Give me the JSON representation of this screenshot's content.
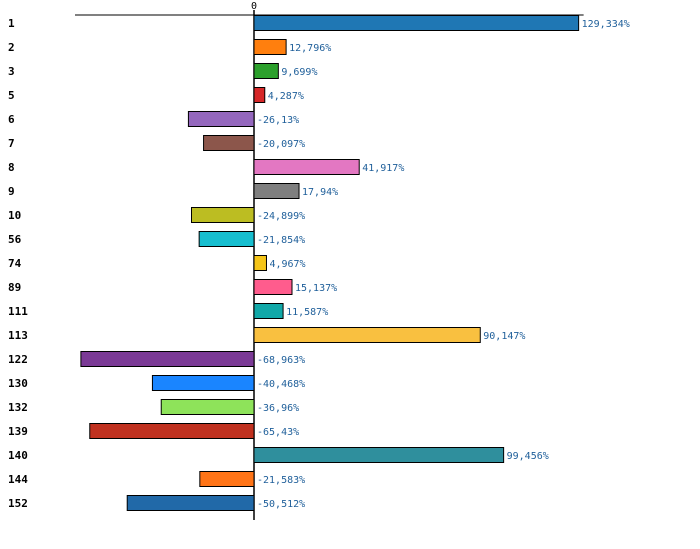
{
  "chart_data": {
    "type": "bar",
    "orientation": "horizontal",
    "title": "",
    "xlabel": "",
    "ylabel": "",
    "zero_tick_label": "0",
    "xlim": [
      -100,
      129.334
    ],
    "grid": false,
    "legend": "none",
    "categories": [
      "1",
      "2",
      "3",
      "5",
      "6",
      "7",
      "8",
      "9",
      "10",
      "56",
      "74",
      "89",
      "111",
      "113",
      "122",
      "130",
      "132",
      "139",
      "140",
      "144",
      "152"
    ],
    "values": [
      129.334,
      12.796,
      9.699,
      4.287,
      -26.13,
      -20.097,
      41.917,
      17.94,
      -24.899,
      -21.854,
      4.967,
      15.137,
      11.587,
      90.147,
      -68.963,
      -40.468,
      -36.96,
      -65.43,
      99.456,
      -21.583,
      -50.512
    ],
    "value_labels": [
      "129,334%",
      "12,796%",
      "9,699%",
      "4,287%",
      "-26,13%",
      "-20,097%",
      "41,917%",
      "17,94%",
      "-24,899%",
      "-21,854%",
      "4,967%",
      "15,137%",
      "11,587%",
      "90,147%",
      "-68,963%",
      "-40,468%",
      "-36,96%",
      "-65,43%",
      "99,456%",
      "-21,583%",
      "-50,512%"
    ],
    "colors": [
      "#1f77b4",
      "#ff7f0e",
      "#2ca02c",
      "#d62728",
      "#9467bd",
      "#8c564b",
      "#e377c2",
      "#7f7f7f",
      "#bcbd22",
      "#17becf",
      "#f5c518",
      "#ff5c8d",
      "#11a8a8",
      "#f9c040",
      "#7b3a96",
      "#1a85ff",
      "#8ee35a",
      "#c0311f",
      "#2f8f9d",
      "#ff7417",
      "#2169a8"
    ]
  }
}
